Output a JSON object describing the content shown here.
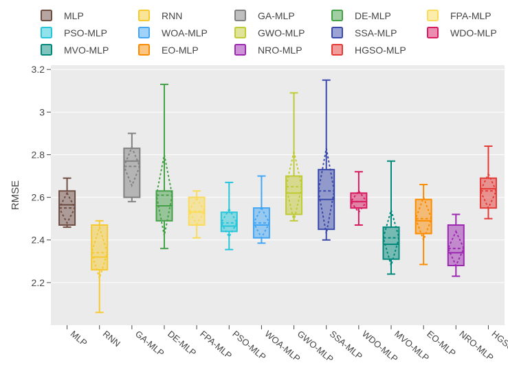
{
  "chart_data": {
    "type": "box",
    "ylabel": "RMSE",
    "xlabel": "",
    "ylim": [
      2.0,
      3.22
    ],
    "yticks": [
      2.2,
      2.4,
      2.6,
      2.8,
      3.0,
      3.2
    ],
    "ytick_labels": [
      "2.2",
      "2.4",
      "2.6",
      "2.8",
      "3",
      "3.2"
    ],
    "grid": true,
    "legend_position": "top",
    "plot_background": "#ebebeb",
    "series": [
      {
        "name": "MLP",
        "color": "#6d4c41",
        "lowerfence": 2.46,
        "q1": 2.47,
        "median": 2.565,
        "mean": 2.55,
        "q3": 2.63,
        "upperfence": 2.69,
        "sd": 0.07
      },
      {
        "name": "RNN",
        "color": "#f6c930",
        "lowerfence": 2.06,
        "q1": 2.26,
        "median": 2.32,
        "mean": 2.34,
        "q3": 2.47,
        "upperfence": 2.49,
        "sd": 0.12
      },
      {
        "name": "GA-MLP",
        "color": "#808080",
        "lowerfence": 2.58,
        "q1": 2.6,
        "median": 2.77,
        "mean": 2.745,
        "q3": 2.83,
        "upperfence": 2.9,
        "sd": 0.09
      },
      {
        "name": "DE-MLP",
        "color": "#43a047",
        "lowerfence": 2.36,
        "q1": 2.49,
        "median": 2.56,
        "mean": 2.61,
        "q3": 2.63,
        "upperfence": 3.13,
        "sd": 0.19
      },
      {
        "name": "FPA-MLP",
        "color": "#fbdb5b",
        "lowerfence": 2.41,
        "q1": 2.47,
        "median": 2.53,
        "mean": 2.535,
        "q3": 2.6,
        "upperfence": 2.63,
        "sd": 0.06
      },
      {
        "name": "PSO-MLP",
        "color": "#26c6da",
        "lowerfence": 2.355,
        "q1": 2.44,
        "median": 2.465,
        "mean": 2.48,
        "q3": 2.53,
        "upperfence": 2.67,
        "sd": 0.065
      },
      {
        "name": "WOA-MLP",
        "color": "#42a5f5",
        "lowerfence": 2.385,
        "q1": 2.41,
        "median": 2.47,
        "mean": 2.48,
        "q3": 2.55,
        "upperfence": 2.7,
        "sd": 0.07
      },
      {
        "name": "GWO-MLP",
        "color": "#c0ca33",
        "lowerfence": 2.49,
        "q1": 2.52,
        "median": 2.62,
        "mean": 2.65,
        "q3": 2.7,
        "upperfence": 3.09,
        "sd": 0.165
      },
      {
        "name": "SSA-MLP",
        "color": "#3949ab",
        "lowerfence": 2.4,
        "q1": 2.45,
        "median": 2.59,
        "mean": 2.63,
        "q3": 2.73,
        "upperfence": 3.15,
        "sd": 0.2
      },
      {
        "name": "WDO-MLP",
        "color": "#d81b60",
        "lowerfence": 2.47,
        "q1": 2.55,
        "median": 2.58,
        "mean": 2.58,
        "q3": 2.62,
        "upperfence": 2.72,
        "sd": 0.05
      },
      {
        "name": "MVO-MLP",
        "color": "#00897b",
        "lowerfence": 2.24,
        "q1": 2.31,
        "median": 2.38,
        "mean": 2.41,
        "q3": 2.46,
        "upperfence": 2.77,
        "sd": 0.13
      },
      {
        "name": "EO-MLP",
        "color": "#fb8c00",
        "lowerfence": 2.285,
        "q1": 2.43,
        "median": 2.49,
        "mean": 2.5,
        "q3": 2.59,
        "upperfence": 2.66,
        "sd": 0.1
      },
      {
        "name": "NRO-MLP",
        "color": "#9c27b0",
        "lowerfence": 2.23,
        "q1": 2.28,
        "median": 2.34,
        "mean": 2.36,
        "q3": 2.47,
        "upperfence": 2.52,
        "sd": 0.08
      },
      {
        "name": "HGSO-MLP",
        "color": "#e53935",
        "lowerfence": 2.5,
        "q1": 2.55,
        "median": 2.64,
        "mean": 2.63,
        "q3": 2.69,
        "upperfence": 2.84,
        "sd": 0.08
      }
    ],
    "legend_order": [
      "MLP",
      "RNN",
      "GA-MLP",
      "DE-MLP",
      "FPA-MLP",
      "PSO-MLP",
      "WOA-MLP",
      "GWO-MLP",
      "SSA-MLP",
      "WDO-MLP",
      "MVO-MLP",
      "EO-MLP",
      "NRO-MLP",
      "HGSO-MLP"
    ]
  }
}
